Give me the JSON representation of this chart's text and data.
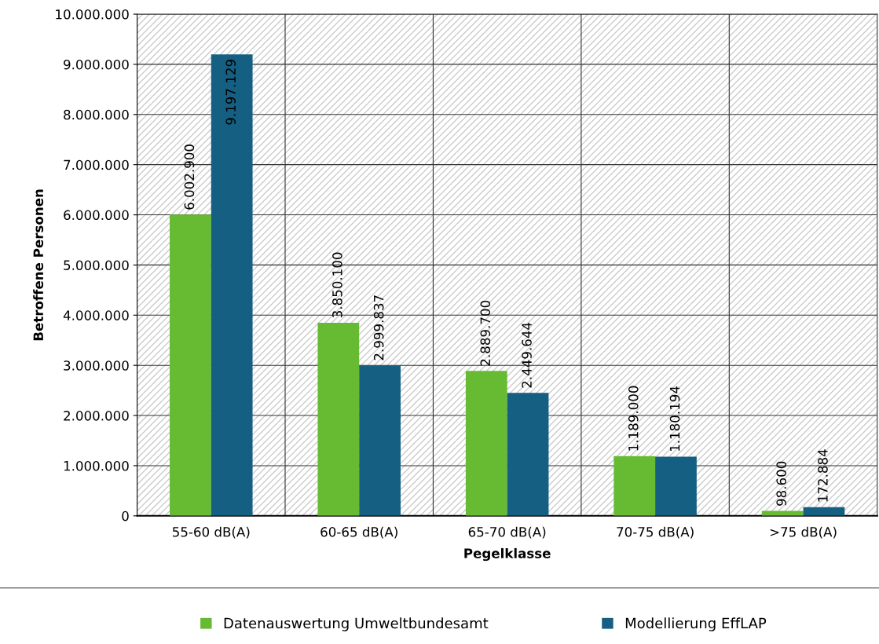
{
  "chart_data": {
    "type": "bar",
    "xlabel": "Pegelklasse",
    "ylabel": "Betroffene Personen",
    "categories": [
      "55-60 dB(A)",
      "60-65 dB(A)",
      "65-70 dB(A)",
      "70-75 dB(A)",
      ">75 dB(A)"
    ],
    "series": [
      {
        "name": "Datenauswertung Umweltbundesamt",
        "color": "#66bb33",
        "values": [
          6002900,
          3850100,
          2889700,
          1189000,
          98600
        ],
        "value_labels": [
          "6.002.900",
          "3.850.100",
          "2.889.700",
          "1.189.000",
          "98.600"
        ]
      },
      {
        "name": "Modellierung EffLAP",
        "color": "#155f82",
        "values": [
          9197129,
          2999837,
          2449644,
          1180194,
          172884
        ],
        "value_labels": [
          "9.197.129",
          "2.999.837",
          "2.449.644",
          "1.180.194",
          "172.884"
        ]
      }
    ],
    "ylim": [
      0,
      10000000
    ],
    "yticks": [
      0,
      {
        "value": 1000000,
        "label": "1.000.000"
      },
      {
        "value": 2000000,
        "label": "2.000.000"
      },
      {
        "value": 3000000,
        "label": "3.000.000"
      },
      {
        "value": 4000000,
        "label": "4.000.000"
      },
      {
        "value": 5000000,
        "label": "5.000.000"
      },
      {
        "value": 6000000,
        "label": "6.000.000"
      },
      {
        "value": 7000000,
        "label": "7.000.000"
      },
      {
        "value": 8000000,
        "label": "8.000.000"
      },
      {
        "value": 9000000,
        "label": "9.000.000"
      },
      {
        "value": 10000000,
        "label": "10.000.000"
      }
    ],
    "grid": true,
    "legend": "bottom"
  }
}
